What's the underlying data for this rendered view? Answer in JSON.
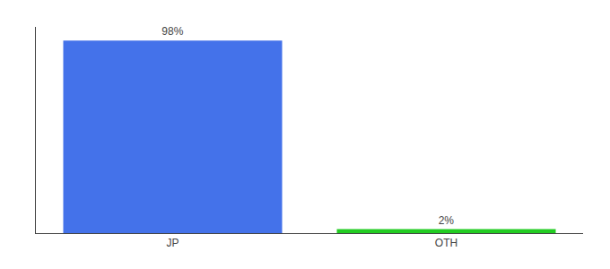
{
  "chart_data": {
    "type": "bar",
    "categories": [
      "JP",
      "OTH"
    ],
    "values": [
      98,
      2
    ],
    "value_labels": [
      "98%",
      "2%"
    ],
    "colors": [
      "#4472EA",
      "#22CC22"
    ],
    "ylim": [
      0,
      105
    ],
    "data_labels": true,
    "tick_labels": "x",
    "grid": false
  }
}
